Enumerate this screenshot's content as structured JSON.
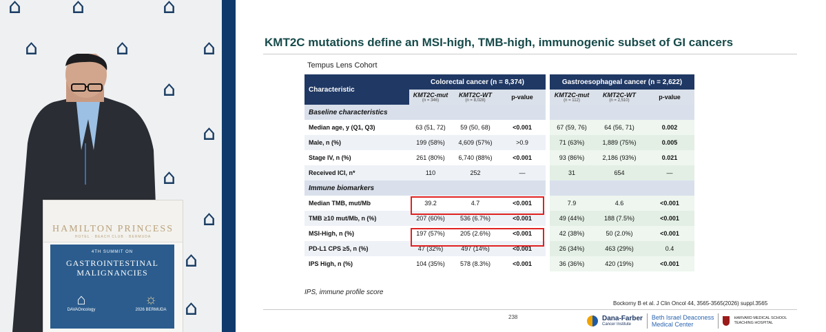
{
  "venue": {
    "hotel_name": "HAMILTON PRINCESS",
    "hotel_sub": "HOTEL · BEACH CLUB · BERMUDA",
    "summit_small": "4TH SUMMIT ON",
    "summit_title_1": "GASTROINTESTINAL",
    "summit_title_2": "MALIGNANCIES",
    "dava_label": "DAVAOncology",
    "bermuda_label": "2026 BERMUDA"
  },
  "slide": {
    "title": "KMT2C mutations define an MSI-high, TMB-high, immunogenic subset of GI cancers",
    "cohort_label": "Tempus Lens Cohort",
    "table": {
      "characteristic_header": "Characteristic",
      "groups": [
        "Colorectal cancer (n = 8,374)",
        "Gastroesophageal cancer (n = 2,622)"
      ],
      "subcols": [
        {
          "label": "KMT2C-mut",
          "n": "(n = 346)"
        },
        {
          "label": "KMT2C-WT",
          "n": "(n = 8,028)"
        },
        {
          "label": "p-value",
          "n": ""
        },
        {
          "label": "KMT2C-mut",
          "n": "(n = 112)"
        },
        {
          "label": "KMT2C-WT",
          "n": "(n = 2,510)"
        },
        {
          "label": "p-value",
          "n": ""
        }
      ],
      "section_baseline": "Baseline characteristics",
      "baseline_rows": [
        {
          "label": "Median age, y (Q1, Q3)",
          "v": [
            "63 (51, 72)",
            "59 (50, 68)",
            "<0.001",
            "67 (59, 76)",
            "64 (56, 71)",
            "0.002"
          ]
        },
        {
          "label": "Male, n (%)",
          "v": [
            "199 (58%)",
            "4,609 (57%)",
            ">0.9",
            "71 (63%)",
            "1,889 (75%)",
            "0.005"
          ]
        },
        {
          "label": "Stage IV, n (%)",
          "v": [
            "261 (80%)",
            "6,740 (88%)",
            "<0.001",
            "93 (86%)",
            "2,186 (93%)",
            "0.021"
          ]
        },
        {
          "label": "Received ICI, n*",
          "v": [
            "110",
            "252",
            "—",
            "31",
            "654",
            "—"
          ]
        }
      ],
      "section_immune": "Immune biomarkers",
      "immune_rows": [
        {
          "label": "Median TMB, mut/Mb",
          "v": [
            "39.2",
            "4.7",
            "<0.001",
            "7.9",
            "4.6",
            "<0.001"
          ]
        },
        {
          "label": "TMB ≥10 mut/Mb, n (%)",
          "v": [
            "207 (60%)",
            "536 (6.7%)",
            "<0.001",
            "49 (44%)",
            "188 (7.5%)",
            "<0.001"
          ]
        },
        {
          "label": "MSI-High, n (%)",
          "v": [
            "197 (57%)",
            "205 (2.6%)",
            "<0.001",
            "42 (38%)",
            "50 (2.0%)",
            "<0.001"
          ]
        },
        {
          "label": "PD-L1 CPS ≥5, n (%)",
          "v": [
            "47 (32%)",
            "497 (14%)",
            "<0.001",
            "26 (34%)",
            "463 (29%)",
            "0.4"
          ]
        },
        {
          "label": "IPS High, n (%)",
          "v": [
            "104 (35%)",
            "578 (8.3%)",
            "<0.001",
            "36 (36%)",
            "420 (19%)",
            "<0.001"
          ]
        }
      ]
    },
    "footnote": "IPS, immune profile score",
    "citation": "Bockorny B et al. J Clin Oncol 44, 3565-3565(2026) suppl.3565",
    "page_number": "238",
    "logos": {
      "dfci_name": "Dana-Farber",
      "dfci_sub": "Cancer Institute",
      "bidmc_1": "Beth Israel Deaconess",
      "bidmc_2": "Medical Center",
      "hms_1": "HARVARD MEDICAL SCHOOL",
      "hms_2": "TEACHING HOSPITAL"
    }
  },
  "colors": {
    "title": "#174a4a",
    "header_navy": "#1f3864",
    "highlight_red": "#e02020",
    "frame": "#0f3a6b"
  }
}
